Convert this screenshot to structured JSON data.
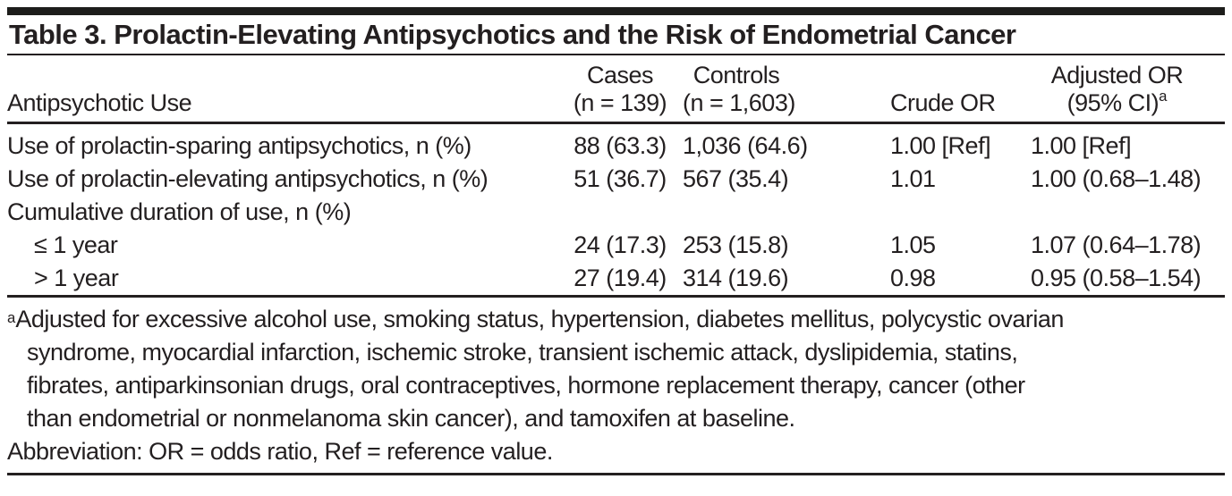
{
  "title": "Table 3. Prolactin-Elevating Antipsychotics and the Risk of Endometrial Cancer",
  "table": {
    "col_headers": {
      "label": "Antipsychotic Use",
      "cases_line1": "Cases",
      "cases_line2": "(n = 139)",
      "controls_line1": "Controls",
      "controls_line2": "(n = 1,603)",
      "crude": "Crude OR",
      "adjusted_line1": "Adjusted OR",
      "adjusted_line2": "(95% CI)",
      "adjusted_superscript": "a"
    },
    "rows": [
      {
        "label": "Use of prolactin-sparing antipsychotics, n (%)",
        "cases": "88 (63.3)",
        "controls": "1,036 (64.6)",
        "crude": "1.00 [Ref]",
        "adjusted": "1.00 [Ref]"
      },
      {
        "label": "Use of prolactin-elevating antipsychotics, n (%)",
        "cases": "51 (36.7)",
        "controls": "567 (35.4)",
        "crude": "1.01",
        "adjusted": "1.00 (0.68–1.48)"
      },
      {
        "label": "Cumulative duration of use, n (%)",
        "cases": "",
        "controls": "",
        "crude": "",
        "adjusted": ""
      },
      {
        "label": "≤ 1 year",
        "cases": "24 (17.3)",
        "controls": "253 (15.8)",
        "crude": "1.05",
        "adjusted": "1.07 (0.64–1.78)"
      },
      {
        "label": "> 1 year",
        "cases": "27 (19.4)",
        "controls": "314 (19.6)",
        "crude": "0.98",
        "adjusted": "0.95 (0.58–1.54)"
      }
    ]
  },
  "footnotes": {
    "a_marker": "a",
    "a_lines": [
      "Adjusted for excessive alcohol use, smoking status, hypertension, diabetes mellitus, polycystic ovarian",
      "syndrome, myocardial infarction, ischemic stroke, transient ischemic attack, dyslipidemia, statins,",
      "fibrates, antiparkinsonian drugs, oral contraceptives, hormone replacement therapy, cancer (other",
      "than endometrial or nonmelanoma skin cancer), and tamoxifen at baseline."
    ],
    "abbreviation": "Abbreviation: OR = odds ratio, Ref = reference value."
  },
  "colors": {
    "text": "#231f20",
    "rule": "#231f20",
    "top_bar": "#1d1d1b",
    "background": "#ffffff"
  }
}
